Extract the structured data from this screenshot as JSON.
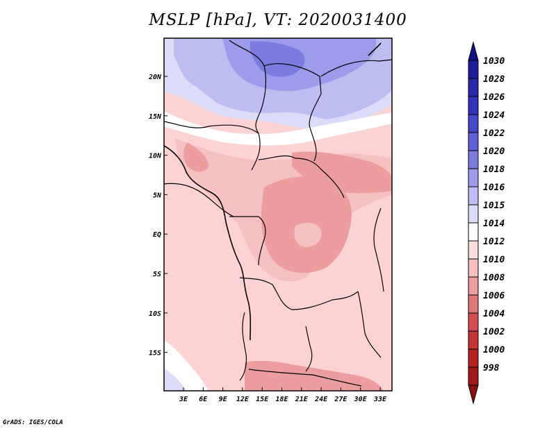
{
  "title": "MSLP [hPa], VT: 2020031400",
  "credit": "GrADS: IGES/COLA",
  "map": {
    "lat_labels": [
      "20N",
      "15N",
      "10N",
      "5N",
      "EQ",
      "5S",
      "10S",
      "15S"
    ],
    "lon_labels": [
      "3E",
      "6E",
      "9E",
      "12E",
      "15E",
      "18E",
      "21E",
      "24E",
      "27E",
      "30E",
      "33E"
    ]
  },
  "colorbar": {
    "levels": [
      "1030",
      "1028",
      "1026",
      "1024",
      "1022",
      "1020",
      "1018",
      "1016",
      "1015",
      "1014",
      "1012",
      "1010",
      "1008",
      "1006",
      "1004",
      "1002",
      "1000",
      "998"
    ],
    "colors": [
      "#1e1e96",
      "#2828a8",
      "#3232bb",
      "#4646c8",
      "#6060d4",
      "#7c7ce0",
      "#9c9cea",
      "#bdbdf2",
      "#dcdcf8",
      "#ffffff",
      "#fbdede",
      "#f5c0c0",
      "#ec9e9e",
      "#e07878",
      "#d45050",
      "#c63535",
      "#b82222",
      "#a01a1a"
    ],
    "top_color": "#141488",
    "bottom_color": "#8c1212"
  }
}
